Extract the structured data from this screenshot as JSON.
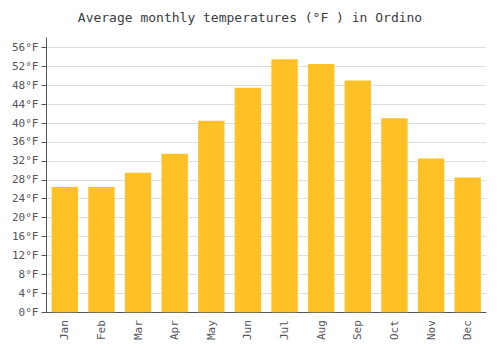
{
  "chart_data": {
    "type": "bar",
    "title": "Average monthly temperatures (°F ) in Ordino",
    "categories": [
      "Jan",
      "Feb",
      "Mar",
      "Apr",
      "May",
      "Jun",
      "Jul",
      "Aug",
      "Sep",
      "Oct",
      "Nov",
      "Dec"
    ],
    "values": [
      26.5,
      26.5,
      29.5,
      33.5,
      40.5,
      47.5,
      53.5,
      52.5,
      49.0,
      41.0,
      32.5,
      28.5
    ],
    "color": "#FFC125",
    "ylim": [
      0,
      58
    ],
    "yticks": [
      {
        "value": 0,
        "label": "0°F"
      },
      {
        "value": 4,
        "label": "4°F"
      },
      {
        "value": 8,
        "label": "8°F"
      },
      {
        "value": 12,
        "label": "12°F"
      },
      {
        "value": 16,
        "label": "16°F"
      },
      {
        "value": 20,
        "label": "20°F"
      },
      {
        "value": 24,
        "label": "24°F"
      },
      {
        "value": 28,
        "label": "28°F"
      },
      {
        "value": 32,
        "label": "32°F"
      },
      {
        "value": 36,
        "label": "36°F"
      },
      {
        "value": 40,
        "label": "40°F"
      },
      {
        "value": 44,
        "label": "44°F"
      },
      {
        "value": 48,
        "label": "48°F"
      },
      {
        "value": 52,
        "label": "52°F"
      },
      {
        "value": 56,
        "label": "56°F"
      }
    ],
    "grid": true
  }
}
